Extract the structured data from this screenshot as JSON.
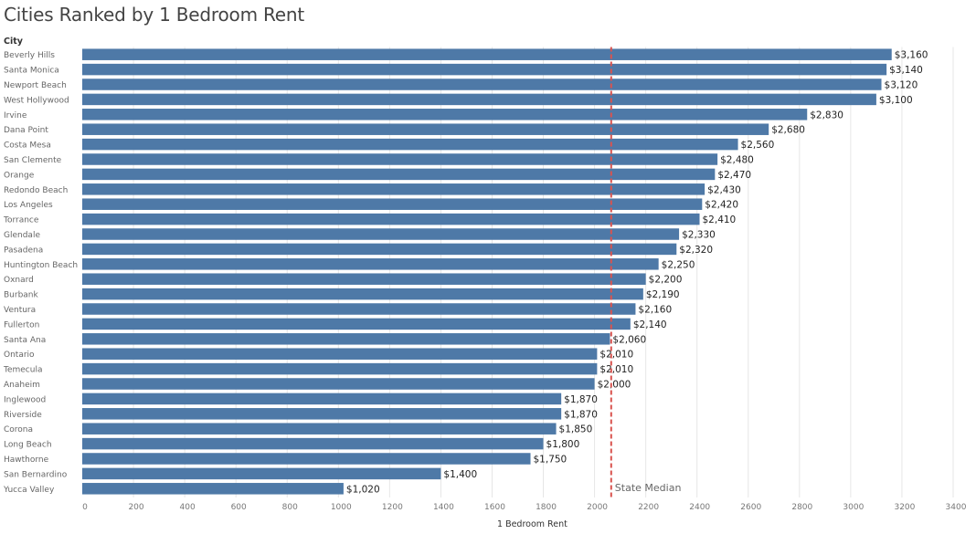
{
  "chart_data": {
    "type": "bar",
    "orientation": "horizontal",
    "title": "Cities Ranked by 1 Bedroom Rent",
    "category_header": "City",
    "xlabel": "1 Bedroom Rent",
    "xlim": [
      0,
      3400
    ],
    "xticks": [
      0,
      200,
      400,
      600,
      800,
      1000,
      1200,
      1400,
      1600,
      1800,
      2000,
      2200,
      2400,
      2600,
      2800,
      3000,
      3200,
      3400
    ],
    "grid": true,
    "bar_color": "#4e79a7",
    "categories": [
      "Beverly Hills",
      "Santa Monica",
      "Newport Beach",
      "West Hollywood",
      "Irvine",
      "Dana Point",
      "Costa Mesa",
      "San Clemente",
      "Orange",
      "Redondo Beach",
      "Los Angeles",
      "Torrance",
      "Glendale",
      "Pasadena",
      "Huntington Beach",
      "Oxnard",
      "Burbank",
      "Ventura",
      "Fullerton",
      "Santa Ana",
      "Ontario",
      "Temecula",
      "Anaheim",
      "Inglewood",
      "Riverside",
      "Corona",
      "Long Beach",
      "Hawthorne",
      "San Bernardino",
      "Yucca Valley"
    ],
    "values": [
      3160,
      3140,
      3120,
      3100,
      2830,
      2680,
      2560,
      2480,
      2470,
      2430,
      2420,
      2410,
      2330,
      2320,
      2250,
      2200,
      2190,
      2160,
      2140,
      2060,
      2010,
      2010,
      2000,
      1870,
      1870,
      1850,
      1800,
      1750,
      1400,
      1020
    ],
    "labels": [
      "$3,160",
      "$3,140",
      "$3,120",
      "$3,100",
      "$2,830",
      "$2,680",
      "$2,560",
      "$2,480",
      "$2,470",
      "$2,430",
      "$2,420",
      "$2,410",
      "$2,330",
      "$2,320",
      "$2,250",
      "$2,200",
      "$2,190",
      "$2,160",
      "$2,140",
      "$2,060",
      "$2,010",
      "$2,010",
      "$2,000",
      "$1,870",
      "$1,870",
      "$1,850",
      "$1,800",
      "$1,750",
      "$1,400",
      "$1,020"
    ],
    "reference_line": {
      "label": "State Median",
      "value": 2065,
      "color": "#d9534f",
      "style": "dashed"
    }
  }
}
